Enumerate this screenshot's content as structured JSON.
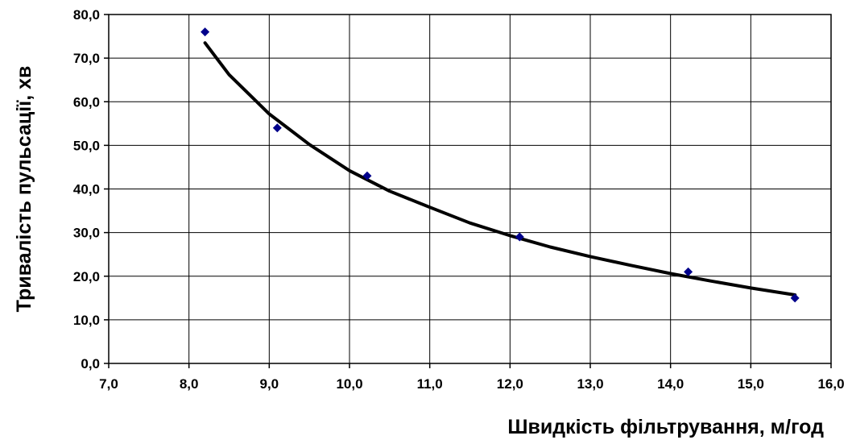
{
  "chart_data": {
    "type": "scatter",
    "title": "",
    "xlabel": "Швидкість фільтрування, м/год",
    "ylabel": "Тривалість пульсації, хв",
    "xlim": [
      7.0,
      16.0
    ],
    "ylim": [
      0.0,
      80.0
    ],
    "x_ticks": [
      "7,0",
      "8,0",
      "9,0",
      "10,0",
      "11,0",
      "12,0",
      "13,0",
      "14,0",
      "15,0",
      "16,0"
    ],
    "y_ticks": [
      "0,0",
      "10,0",
      "20,0",
      "30,0",
      "40,0",
      "50,0",
      "60,0",
      "70,0",
      "80,0"
    ],
    "grid": true,
    "legend": "none",
    "series": [
      {
        "kind": "points",
        "color": "#00008B",
        "marker": "diamond",
        "x": [
          8.2,
          9.1,
          10.22,
          12.12,
          14.22,
          15.55
        ],
        "y": [
          76.0,
          54.0,
          43.0,
          29.0,
          21.0,
          15.0
        ]
      },
      {
        "kind": "trendline",
        "color": "#000000",
        "x": [
          8.2,
          8.5,
          9.0,
          9.5,
          10.0,
          10.5,
          11.0,
          11.5,
          12.0,
          12.5,
          13.0,
          13.5,
          14.0,
          14.5,
          15.0,
          15.55
        ],
        "y": [
          73.5,
          66.2,
          57.2,
          50.2,
          44.2,
          39.5,
          35.8,
          32.2,
          29.3,
          26.7,
          24.5,
          22.5,
          20.6,
          18.9,
          17.3,
          15.7
        ]
      }
    ]
  }
}
